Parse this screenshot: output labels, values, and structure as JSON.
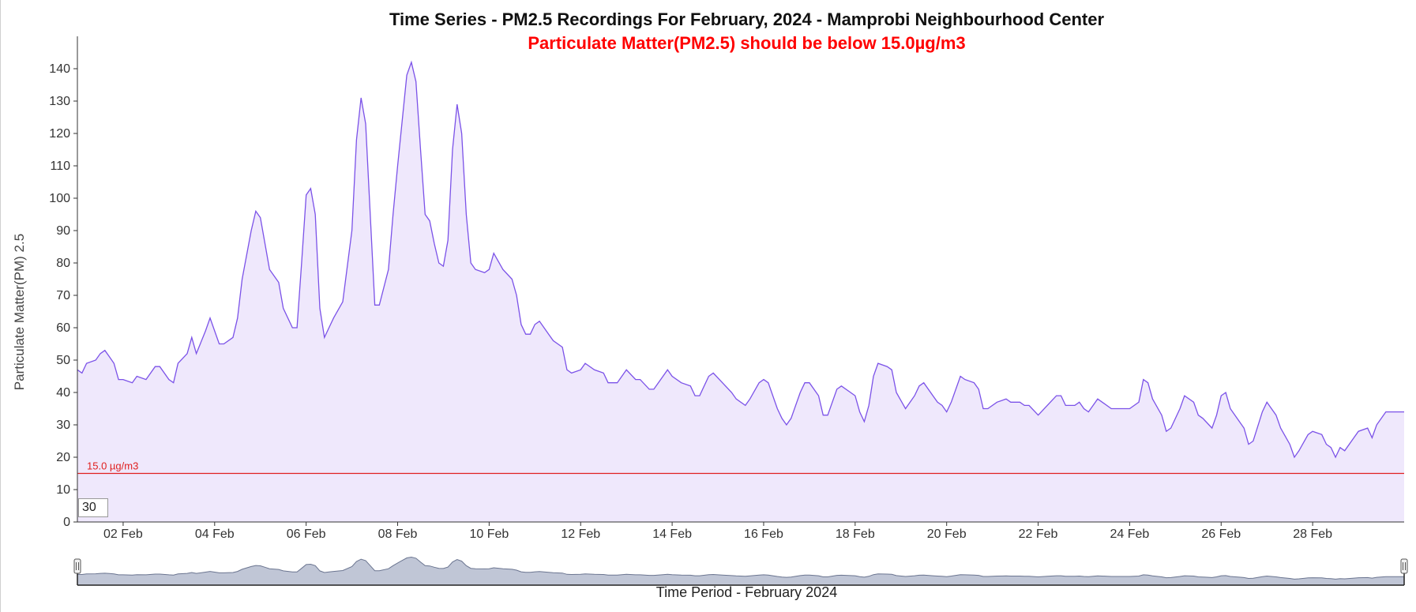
{
  "chart_data": {
    "type": "area",
    "title": "Time Series - PM2.5 Recordings For February, 2024 - Mamprobi Neighbourhood Center",
    "subtitle": "Particulate Matter(PM2.5) should be below 15.0µg/m3",
    "xlabel": "Time Period - February 2024",
    "ylabel": "Particulate Matter(PM) 2.5",
    "ylim": [
      0,
      150
    ],
    "yticks": [
      0,
      10,
      20,
      30,
      40,
      50,
      60,
      70,
      80,
      90,
      100,
      110,
      120,
      130,
      140
    ],
    "xlim": [
      1.0,
      30.0
    ],
    "xtick_positions": [
      2,
      4,
      6,
      8,
      10,
      12,
      14,
      16,
      18,
      20,
      22,
      24,
      26,
      28
    ],
    "xtick_labels": [
      "02 Feb",
      "04 Feb",
      "06 Feb",
      "08 Feb",
      "10 Feb",
      "12 Feb",
      "14 Feb",
      "16 Feb",
      "18 Feb",
      "20 Feb",
      "22 Feb",
      "24 Feb",
      "26 Feb",
      "28 Feb"
    ],
    "threshold": {
      "value": 15,
      "label": "15.0 µg/m3",
      "color": "#e02020"
    },
    "zoom_value": "30",
    "grid": false,
    "line_color": "#7b52e8",
    "fill_color": "#efe8fc",
    "navigator_fill": "#c0c6d6",
    "navigator_line": "#6b7590",
    "series": [
      {
        "values": [
          [
            1.0,
            47
          ],
          [
            1.1,
            46
          ],
          [
            1.2,
            49
          ],
          [
            1.4,
            50
          ],
          [
            1.5,
            52
          ],
          [
            1.6,
            53
          ],
          [
            1.7,
            51
          ],
          [
            1.8,
            49
          ],
          [
            1.9,
            44
          ],
          [
            2.0,
            44
          ],
          [
            2.2,
            43
          ],
          [
            2.3,
            45
          ],
          [
            2.5,
            44
          ],
          [
            2.7,
            48
          ],
          [
            2.8,
            48
          ],
          [
            3.0,
            44
          ],
          [
            3.1,
            43
          ],
          [
            3.2,
            49
          ],
          [
            3.4,
            52
          ],
          [
            3.5,
            57
          ],
          [
            3.6,
            52
          ],
          [
            3.8,
            59
          ],
          [
            3.9,
            63
          ],
          [
            4.0,
            59
          ],
          [
            4.1,
            55
          ],
          [
            4.2,
            55
          ],
          [
            4.4,
            57
          ],
          [
            4.5,
            63
          ],
          [
            4.6,
            75
          ],
          [
            4.8,
            90
          ],
          [
            4.9,
            96
          ],
          [
            5.0,
            94
          ],
          [
            5.1,
            86
          ],
          [
            5.2,
            78
          ],
          [
            5.4,
            74
          ],
          [
            5.5,
            66
          ],
          [
            5.7,
            60
          ],
          [
            5.8,
            60
          ],
          [
            5.9,
            80
          ],
          [
            6.0,
            101
          ],
          [
            6.1,
            103
          ],
          [
            6.2,
            95
          ],
          [
            6.3,
            66
          ],
          [
            6.4,
            57
          ],
          [
            6.5,
            60
          ],
          [
            6.6,
            63
          ],
          [
            6.8,
            68
          ],
          [
            7.0,
            90
          ],
          [
            7.1,
            118
          ],
          [
            7.2,
            131
          ],
          [
            7.3,
            123
          ],
          [
            7.4,
            95
          ],
          [
            7.5,
            67
          ],
          [
            7.6,
            67
          ],
          [
            7.8,
            78
          ],
          [
            7.9,
            95
          ],
          [
            8.0,
            110
          ],
          [
            8.1,
            124
          ],
          [
            8.2,
            138
          ],
          [
            8.3,
            142
          ],
          [
            8.4,
            136
          ],
          [
            8.5,
            115
          ],
          [
            8.6,
            95
          ],
          [
            8.7,
            93
          ],
          [
            8.8,
            86
          ],
          [
            8.9,
            80
          ],
          [
            9.0,
            79
          ],
          [
            9.1,
            87
          ],
          [
            9.2,
            115
          ],
          [
            9.3,
            129
          ],
          [
            9.4,
            120
          ],
          [
            9.5,
            95
          ],
          [
            9.6,
            80
          ],
          [
            9.7,
            78
          ],
          [
            9.9,
            77
          ],
          [
            10.0,
            78
          ],
          [
            10.1,
            83
          ],
          [
            10.3,
            78
          ],
          [
            10.5,
            75
          ],
          [
            10.6,
            70
          ],
          [
            10.7,
            61
          ],
          [
            10.8,
            58
          ],
          [
            10.9,
            58
          ],
          [
            11.0,
            61
          ],
          [
            11.1,
            62
          ],
          [
            11.3,
            58
          ],
          [
            11.4,
            56
          ],
          [
            11.6,
            54
          ],
          [
            11.7,
            47
          ],
          [
            11.8,
            46
          ],
          [
            12.0,
            47
          ],
          [
            12.1,
            49
          ],
          [
            12.3,
            47
          ],
          [
            12.5,
            46
          ],
          [
            12.6,
            43
          ],
          [
            12.8,
            43
          ],
          [
            12.9,
            45
          ],
          [
            13.0,
            47
          ],
          [
            13.2,
            44
          ],
          [
            13.3,
            44
          ],
          [
            13.5,
            41
          ],
          [
            13.6,
            41
          ],
          [
            13.8,
            45
          ],
          [
            13.9,
            47
          ],
          [
            14.0,
            45
          ],
          [
            14.2,
            43
          ],
          [
            14.4,
            42
          ],
          [
            14.5,
            39
          ],
          [
            14.6,
            39
          ],
          [
            14.8,
            45
          ],
          [
            14.9,
            46
          ],
          [
            15.1,
            43
          ],
          [
            15.3,
            40
          ],
          [
            15.4,
            38
          ],
          [
            15.6,
            36
          ],
          [
            15.7,
            38
          ],
          [
            15.9,
            43
          ],
          [
            16.0,
            44
          ],
          [
            16.1,
            43
          ],
          [
            16.3,
            35
          ],
          [
            16.4,
            32
          ],
          [
            16.5,
            30
          ],
          [
            16.6,
            32
          ],
          [
            16.8,
            40
          ],
          [
            16.9,
            43
          ],
          [
            17.0,
            43
          ],
          [
            17.2,
            39
          ],
          [
            17.3,
            33
          ],
          [
            17.4,
            33
          ],
          [
            17.6,
            41
          ],
          [
            17.7,
            42
          ],
          [
            17.9,
            40
          ],
          [
            18.0,
            39
          ],
          [
            18.1,
            34
          ],
          [
            18.2,
            31
          ],
          [
            18.3,
            36
          ],
          [
            18.4,
            45
          ],
          [
            18.5,
            49
          ],
          [
            18.7,
            48
          ],
          [
            18.8,
            47
          ],
          [
            18.9,
            40
          ],
          [
            19.1,
            35
          ],
          [
            19.3,
            39
          ],
          [
            19.4,
            42
          ],
          [
            19.5,
            43
          ],
          [
            19.7,
            39
          ],
          [
            19.8,
            37
          ],
          [
            19.9,
            36
          ],
          [
            20.0,
            34
          ],
          [
            20.1,
            37
          ],
          [
            20.3,
            45
          ],
          [
            20.4,
            44
          ],
          [
            20.6,
            43
          ],
          [
            20.7,
            41
          ],
          [
            20.8,
            35
          ],
          [
            20.9,
            35
          ],
          [
            21.1,
            37
          ],
          [
            21.3,
            38
          ],
          [
            21.4,
            37
          ],
          [
            21.6,
            37
          ],
          [
            21.7,
            36
          ],
          [
            21.8,
            36
          ],
          [
            22.0,
            33
          ],
          [
            22.2,
            36
          ],
          [
            22.4,
            39
          ],
          [
            22.5,
            39
          ],
          [
            22.6,
            36
          ],
          [
            22.8,
            36
          ],
          [
            22.9,
            37
          ],
          [
            23.0,
            35
          ],
          [
            23.1,
            34
          ],
          [
            23.3,
            38
          ],
          [
            23.4,
            37
          ],
          [
            23.6,
            35
          ],
          [
            23.8,
            35
          ],
          [
            23.9,
            35
          ],
          [
            24.0,
            35
          ],
          [
            24.2,
            37
          ],
          [
            24.3,
            44
          ],
          [
            24.4,
            43
          ],
          [
            24.5,
            38
          ],
          [
            24.7,
            33
          ],
          [
            24.8,
            28
          ],
          [
            24.9,
            29
          ],
          [
            25.1,
            35
          ],
          [
            25.2,
            39
          ],
          [
            25.4,
            37
          ],
          [
            25.5,
            33
          ],
          [
            25.6,
            32
          ],
          [
            25.8,
            29
          ],
          [
            25.9,
            33
          ],
          [
            26.0,
            39
          ],
          [
            26.1,
            40
          ],
          [
            26.2,
            35
          ],
          [
            26.4,
            31
          ],
          [
            26.5,
            29
          ],
          [
            26.6,
            24
          ],
          [
            26.7,
            25
          ],
          [
            26.9,
            34
          ],
          [
            27.0,
            37
          ],
          [
            27.2,
            33
          ],
          [
            27.3,
            29
          ],
          [
            27.5,
            24
          ],
          [
            27.6,
            20
          ],
          [
            27.7,
            22
          ],
          [
            27.9,
            27
          ],
          [
            28.0,
            28
          ],
          [
            28.2,
            27
          ],
          [
            28.3,
            24
          ],
          [
            28.4,
            23
          ],
          [
            28.5,
            20
          ],
          [
            28.6,
            23
          ],
          [
            28.7,
            22
          ],
          [
            28.9,
            26
          ],
          [
            29.0,
            28
          ],
          [
            29.2,
            29
          ],
          [
            29.3,
            26
          ],
          [
            29.4,
            30
          ],
          [
            29.6,
            34
          ],
          [
            29.7,
            34
          ],
          [
            30.0,
            34
          ]
        ]
      }
    ]
  }
}
